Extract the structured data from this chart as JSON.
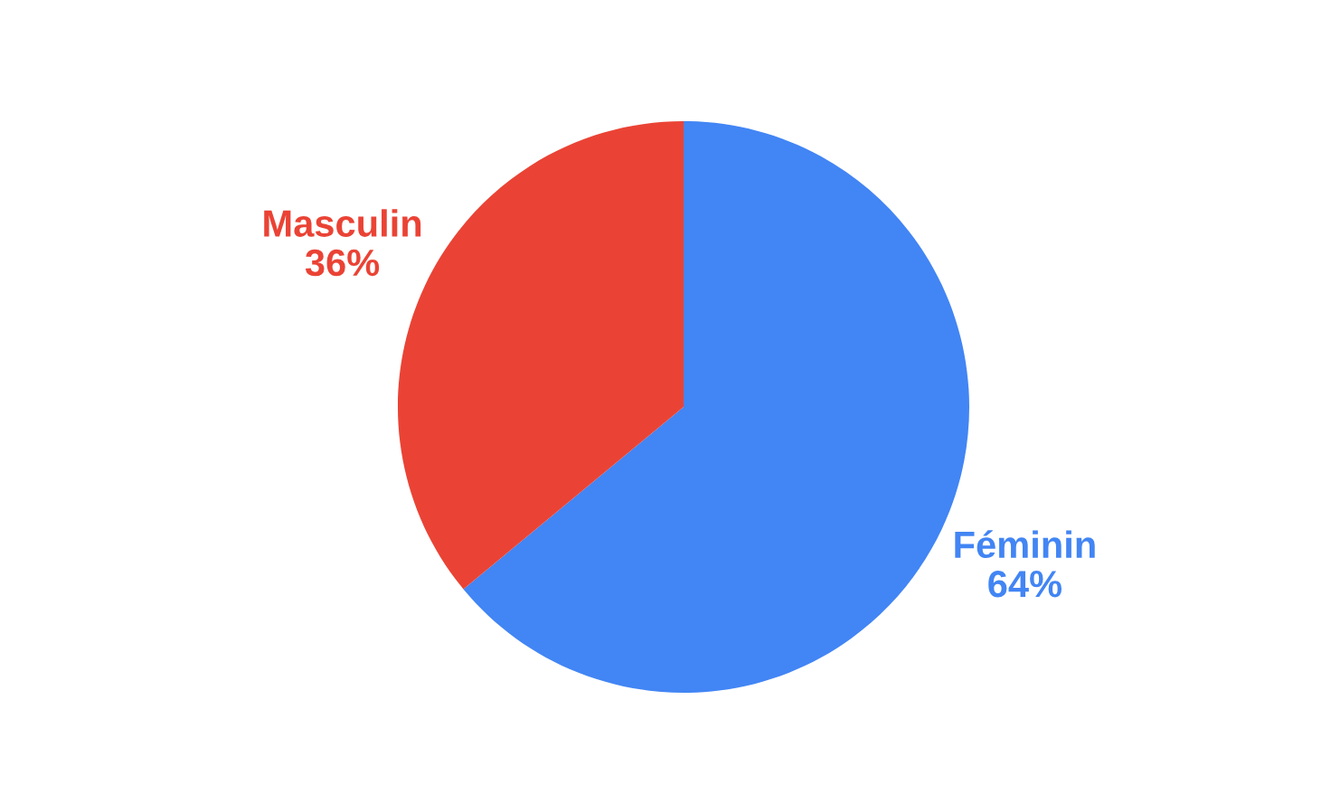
{
  "chart_data": {
    "type": "pie",
    "categories": [
      "Féminin",
      "Masculin"
    ],
    "values": [
      64,
      36
    ],
    "value_labels": [
      "64%",
      "36%"
    ],
    "colors": [
      "#4285f4",
      "#ea4335"
    ],
    "legend": false
  }
}
